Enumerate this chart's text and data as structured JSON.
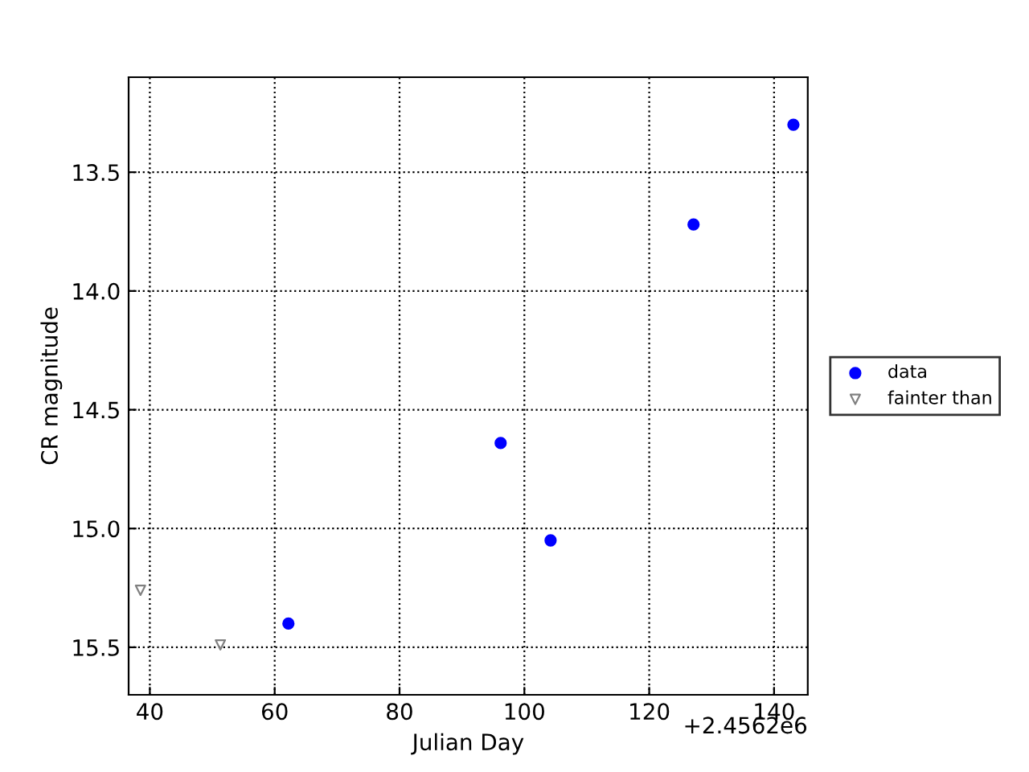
{
  "chart_data": {
    "type": "scatter",
    "xlabel": "Julian Day",
    "ylabel": "CR magnitude",
    "series": [
      {
        "name": "data",
        "color": "#0000ff",
        "marker": "circle",
        "x": [
          62.2,
          96.2,
          104.2,
          127.1,
          143.1
        ],
        "values": [
          15.4,
          14.64,
          15.05,
          13.72,
          13.3
        ]
      },
      {
        "name": "fainter than",
        "color": "#808080",
        "marker": "triangle",
        "x": [
          38.5,
          51.3
        ],
        "values": [
          15.26,
          15.49
        ]
      }
    ],
    "xlim": [
      36.6,
      145.4
    ],
    "xticks": [
      40,
      60,
      80,
      100,
      120,
      140
    ],
    "ylim": [
      15.7,
      13.1
    ],
    "yticks": [
      {
        "value": 13.5,
        "label": "13.5"
      },
      {
        "value": 14,
        "label": "14.0"
      },
      {
        "value": 14.5,
        "label": "14.5"
      },
      {
        "value": 15,
        "label": "15.0"
      },
      {
        "value": 15.5,
        "label": "15.5"
      }
    ],
    "annotations": [
      "+2.4562e6"
    ],
    "grid": true,
    "legend": "right"
  }
}
